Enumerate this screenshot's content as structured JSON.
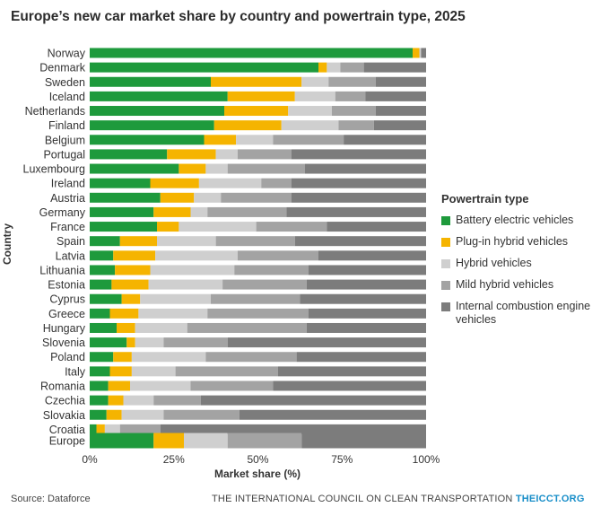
{
  "colors": {
    "battery_electric": "#1e9a3c",
    "plug_in_hybrid": "#f5b400",
    "hybrid": "#cfcfcf",
    "mild_hybrid": "#a3a3a3",
    "ice": "#7c7c7c"
  },
  "legend": {
    "title": "Powertrain type",
    "items": [
      {
        "label": "Battery electric vehicles",
        "color": "#1e9a3c"
      },
      {
        "label": "Plug-in hybrid vehicles",
        "color": "#f5b400"
      },
      {
        "label": "Hybrid vehicles",
        "color": "#cfcfcf"
      },
      {
        "label": "Mild hybrid vehicles",
        "color": "#a3a3a3"
      },
      {
        "label": "Internal combustion engine vehicles",
        "color": "#7c7c7c"
      }
    ]
  },
  "footer": {
    "source": "Source: Dataforce",
    "org": "THE INTERNATIONAL COUNCIL ON CLEAN TRANSPORTATION",
    "site": "THEICCT.ORG"
  },
  "chart_data": {
    "type": "bar",
    "orientation": "horizontal",
    "stacked": true,
    "title": "Europe’s new car market share by country and powertrain type, 2025",
    "xlabel": "Market share (%)",
    "ylabel": "Country",
    "xlim": [
      0,
      100
    ],
    "xticks": [
      "0%",
      "25%",
      "50%",
      "75%",
      "100%"
    ],
    "categories": [
      "Norway",
      "Denmark",
      "Sweden",
      "Iceland",
      "Netherlands",
      "Finland",
      "Belgium",
      "Portugal",
      "Luxembourg",
      "Ireland",
      "Austria",
      "Germany",
      "France",
      "Spain",
      "Latvia",
      "Lithuania",
      "Estonia",
      "Cyprus",
      "Greece",
      "Hungary",
      "Slovenia",
      "Poland",
      "Italy",
      "Romania",
      "Czechia",
      "Slovakia",
      "Croatia",
      "Europe"
    ],
    "series": [
      {
        "name": "Battery electric vehicles",
        "values": [
          96,
          68,
          36,
          41,
          40,
          37,
          34,
          23,
          26.5,
          18,
          21,
          19,
          20,
          9,
          7,
          7.5,
          6.5,
          9.5,
          6,
          8,
          11,
          7,
          6,
          5.5,
          5.5,
          5,
          2,
          19
        ]
      },
      {
        "name": "Plug-in hybrid vehicles",
        "values": [
          2,
          2.5,
          27,
          20,
          19,
          20,
          9.5,
          14.5,
          8,
          14.5,
          10,
          11,
          6.5,
          11,
          12.5,
          10.5,
          11,
          5.5,
          8.5,
          5.5,
          2.5,
          5.5,
          6.5,
          6.5,
          4.5,
          4.5,
          2.5,
          9
        ]
      },
      {
        "name": "Hybrid vehicles",
        "values": [
          0.5,
          4,
          8,
          12,
          13,
          17,
          11,
          6.5,
          6.5,
          18.5,
          8,
          5,
          23,
          17.5,
          24.5,
          25,
          22,
          21,
          20.5,
          15.5,
          8.5,
          22,
          13,
          18,
          9,
          12.5,
          4.5,
          13
        ]
      },
      {
        "name": "Mild hybrid vehicles",
        "values": [
          0,
          7,
          14,
          9,
          13,
          10.5,
          21,
          16,
          23,
          9,
          21,
          23.5,
          21,
          23.5,
          24,
          22,
          25,
          26.5,
          30,
          35.5,
          19,
          27,
          30.5,
          24.5,
          14,
          22.5,
          12,
          22
        ]
      },
      {
        "name": "Internal combustion engine vehicles",
        "values": [
          1.5,
          18.5,
          15,
          18,
          15,
          15.5,
          24.5,
          40,
          36,
          40,
          40,
          41.5,
          29.5,
          39,
          32,
          35,
          35.5,
          37.5,
          35,
          35.5,
          59,
          38.5,
          44,
          45.5,
          67,
          55.5,
          79,
          37
        ]
      }
    ]
  }
}
